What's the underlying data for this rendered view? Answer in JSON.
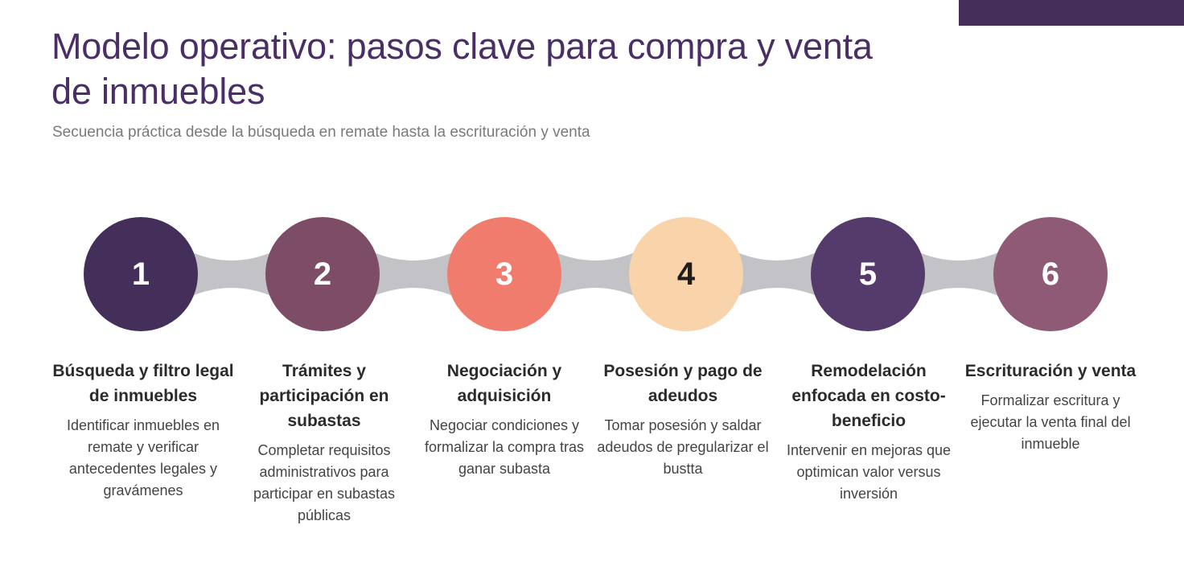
{
  "header": {
    "title": "Modelo operativo: pasos clave para compra y venta de inmuebles",
    "subtitle": "Secuencia práctica desde la búsqueda en remate hasta la escrituración y venta"
  },
  "colors": {
    "accent_bar": "#432f5a",
    "connector": "#c3c3c7",
    "title": "#4a2f66"
  },
  "steps": [
    {
      "number": "1",
      "title": "Búsqueda y filtro legal de inmuebles",
      "description": "Identificar inmuebles en remate y verificar antecedentes legales y gravámenes",
      "color": "#432f5a",
      "number_color": "#ffffff"
    },
    {
      "number": "2",
      "title": "Trámites y participación en subastas",
      "description": "Completar requisitos administrativos para participar en subastas públicas",
      "color": "#7d4d68",
      "number_color": "#ffffff"
    },
    {
      "number": "3",
      "title": "Negociación y adquisición",
      "description": "Negociar condiciones y formalizar la compra tras ganar subasta",
      "color": "#ef7c6c",
      "number_color": "#ffffff"
    },
    {
      "number": "4",
      "title": "Posesión y pago de adeudos",
      "description": "Tomar posesión y saldar adeudos de pregularizar el bustta",
      "color": "#f9d3a9",
      "number_color": "#1e1e1e"
    },
    {
      "number": "5",
      "title": "Remodelación enfocada en costo-beneficio",
      "description": "Intervenir en mejoras que optimican valor versus inversión",
      "color": "#553b6b",
      "number_color": "#ffffff"
    },
    {
      "number": "6",
      "title": "Escrituración y venta",
      "description": "Formalizar escritura y ejecutar la venta final del inmueble",
      "color": "#8e5a76",
      "number_color": "#ffffff"
    }
  ]
}
